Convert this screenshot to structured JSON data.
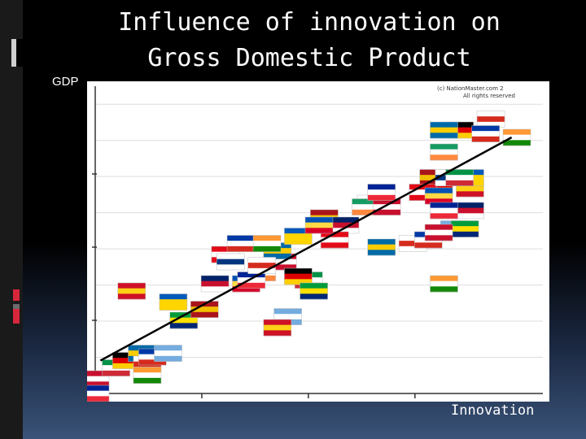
{
  "title_line1": "Influence of innovation on",
  "title_line2": "Gross Domestic Product",
  "watermark_line1": "(c) NationMaster.com 2",
  "watermark_line2": "All rights reserved",
  "colors": {
    "axis": "#333333",
    "trend": "#000000",
    "grid": "#dddddd"
  },
  "chart_data": {
    "type": "scatter",
    "title": "Influence of innovation on Gross Domestic Product",
    "xlabel": "Innovation",
    "ylabel": "GDP",
    "xlim": [
      0,
      4.3
    ],
    "ylim": [
      0,
      4.2
    ],
    "grid": true,
    "trendline": {
      "x": [
        0.05,
        4.0
      ],
      "y": [
        0.45,
        3.5
      ]
    },
    "series": [
      {
        "marker": "flag",
        "x": [
          0.0,
          0.0,
          0.2,
          0.3,
          0.45,
          0.5,
          0.55,
          0.5,
          0.7,
          0.85,
          0.35,
          0.75,
          1.05,
          1.15,
          1.25,
          1.45,
          1.3,
          1.6,
          1.8,
          1.5,
          2.05,
          1.95,
          1.75,
          1.6,
          1.4,
          1.65,
          1.85,
          2.1,
          1.75,
          1.95,
          2.2,
          2.4,
          2.3,
          2.15,
          2.65,
          2.6,
          2.8,
          2.75,
          3.15,
          3.3,
          2.75,
          3.05,
          3.2,
          3.35,
          3.45,
          3.55,
          3.6,
          3.6,
          3.25,
          3.6,
          3.15,
          3.3,
          3.4,
          3.35,
          3.3,
          3.35,
          3.5,
          3.5,
          3.35,
          3.8,
          3.75,
          4.05
        ],
        "y": [
          0.2,
          0.0,
          0.35,
          0.45,
          0.55,
          0.4,
          0.5,
          0.25,
          0.55,
          1.0,
          1.4,
          1.25,
          1.15,
          1.5,
          1.9,
          1.5,
          1.8,
          1.65,
          1.8,
          1.55,
          1.55,
          1.6,
          1.95,
          1.75,
          2.05,
          2.05,
          1.05,
          1.4,
          0.9,
          2.15,
          2.4,
          2.3,
          2.1,
          2.3,
          2.6,
          2.55,
          2.55,
          2.75,
          2.75,
          2.85,
          2.0,
          2.05,
          2.1,
          1.5,
          2.25,
          2.25,
          2.8,
          2.95,
          2.95,
          2.5,
          2.75,
          2.7,
          2.95,
          3.3,
          2.2,
          2.5,
          2.95,
          3.6,
          3.6,
          3.75,
          3.55,
          3.5
        ]
      }
    ]
  }
}
